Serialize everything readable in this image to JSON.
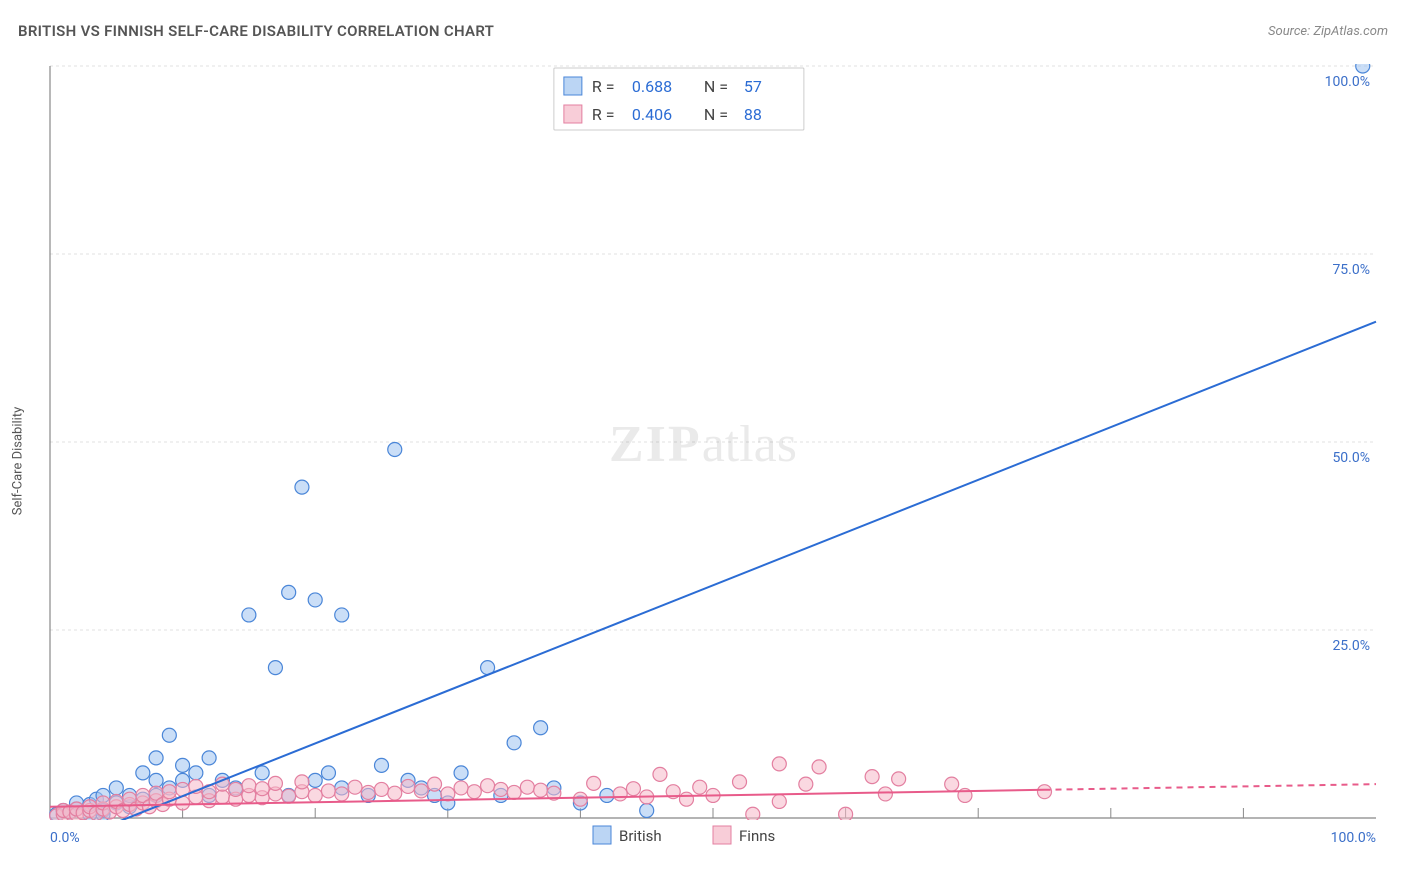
{
  "title": "BRITISH VS FINNISH SELF-CARE DISABILITY CORRELATION CHART",
  "source_prefix": "Source: ",
  "source_link": "ZipAtlas.com",
  "ylabel": "Self-Care Disability",
  "watermark_zip": "ZIP",
  "watermark_atlas": "atlas",
  "chart": {
    "type": "scatter",
    "xlim": [
      0,
      100
    ],
    "ylim": [
      0,
      100
    ],
    "x_ticks_major": [
      0,
      100
    ],
    "x_ticks_minor": [
      10,
      20,
      30,
      40,
      50,
      60,
      70,
      80,
      90
    ],
    "y_ticks": [
      25,
      50,
      75,
      100
    ],
    "x_tick_labels": {
      "0": "0.0%",
      "100": "100.0%"
    },
    "y_tick_labels": {
      "25": "25.0%",
      "50": "50.0%",
      "75": "75.0%",
      "100": "100.0%"
    },
    "grid_color": "#e0e0e0",
    "axis_color": "#888888",
    "background": "#ffffff",
    "marker_radius": 7,
    "marker_stroke_width": 1.2,
    "series": [
      {
        "name": "British",
        "fill": "#9ec3f0",
        "stroke": "#4a86d8",
        "fill_opacity": 0.55,
        "R": "0.688",
        "N": "57",
        "trend": {
          "x1": 3,
          "y1": -2,
          "x2": 100,
          "y2": 66,
          "color": "#2b6cd4",
          "width": 2,
          "dash_from_x": null
        },
        "points": [
          [
            0.5,
            0.5
          ],
          [
            1,
            1
          ],
          [
            1.5,
            0.8
          ],
          [
            2,
            1.2
          ],
          [
            2,
            2
          ],
          [
            3,
            0.5
          ],
          [
            3,
            1.8
          ],
          [
            3.5,
            2.5
          ],
          [
            4,
            1
          ],
          [
            4,
            3
          ],
          [
            5,
            2
          ],
          [
            5,
            4
          ],
          [
            6,
            1.5
          ],
          [
            6,
            3
          ],
          [
            7,
            2.5
          ],
          [
            7,
            6
          ],
          [
            8,
            3
          ],
          [
            8,
            5
          ],
          [
            8,
            8
          ],
          [
            9,
            4
          ],
          [
            9,
            11
          ],
          [
            10,
            5
          ],
          [
            10,
            7
          ],
          [
            11,
            6
          ],
          [
            12,
            3
          ],
          [
            12,
            8
          ],
          [
            13,
            5
          ],
          [
            14,
            4
          ],
          [
            15,
            27
          ],
          [
            16,
            6
          ],
          [
            17,
            20
          ],
          [
            18,
            3
          ],
          [
            18,
            30
          ],
          [
            19,
            44
          ],
          [
            20,
            5
          ],
          [
            20,
            29
          ],
          [
            21,
            6
          ],
          [
            22,
            27
          ],
          [
            22,
            4
          ],
          [
            24,
            3
          ],
          [
            25,
            7
          ],
          [
            26,
            49
          ],
          [
            27,
            5
          ],
          [
            28,
            4
          ],
          [
            29,
            3
          ],
          [
            30,
            2
          ],
          [
            31,
            6
          ],
          [
            33,
            20
          ],
          [
            34,
            3
          ],
          [
            35,
            10
          ],
          [
            37,
            12
          ],
          [
            38,
            4
          ],
          [
            40,
            2
          ],
          [
            42,
            3
          ],
          [
            45,
            1
          ],
          [
            99,
            100
          ],
          [
            4,
            0.5
          ]
        ]
      },
      {
        "name": "Finns",
        "fill": "#f5b8c8",
        "stroke": "#e37fa0",
        "fill_opacity": 0.55,
        "R": "0.406",
        "N": "88",
        "trend": {
          "x1": 0,
          "y1": 1.5,
          "x2": 100,
          "y2": 4.5,
          "color": "#e85b8a",
          "width": 2,
          "dash_from_x": 75
        },
        "points": [
          [
            0.5,
            0.3
          ],
          [
            1,
            0.5
          ],
          [
            1,
            1
          ],
          [
            1.5,
            0.8
          ],
          [
            2,
            0.5
          ],
          [
            2,
            1.2
          ],
          [
            2.5,
            0.7
          ],
          [
            3,
            1
          ],
          [
            3,
            1.5
          ],
          [
            3.5,
            0.6
          ],
          [
            4,
            1.2
          ],
          [
            4,
            2
          ],
          [
            4.5,
            0.8
          ],
          [
            5,
            1.5
          ],
          [
            5,
            2.2
          ],
          [
            5.5,
            1
          ],
          [
            6,
            1.8
          ],
          [
            6,
            2.5
          ],
          [
            6.5,
            1.2
          ],
          [
            7,
            2
          ],
          [
            7,
            3
          ],
          [
            7.5,
            1.5
          ],
          [
            8,
            2.3
          ],
          [
            8,
            3.3
          ],
          [
            8.5,
            1.8
          ],
          [
            9,
            2.5
          ],
          [
            9,
            3.5
          ],
          [
            10,
            2
          ],
          [
            10,
            3.8
          ],
          [
            11,
            2.8
          ],
          [
            11,
            4.2
          ],
          [
            12,
            2.3
          ],
          [
            12,
            3.5
          ],
          [
            13,
            2.8
          ],
          [
            13,
            4.5
          ],
          [
            14,
            2.5
          ],
          [
            14,
            3.8
          ],
          [
            15,
            3
          ],
          [
            15,
            4.3
          ],
          [
            16,
            2.7
          ],
          [
            16,
            3.9
          ],
          [
            17,
            3.2
          ],
          [
            17,
            4.6
          ],
          [
            18,
            2.9
          ],
          [
            19,
            3.5
          ],
          [
            19,
            4.8
          ],
          [
            20,
            3
          ],
          [
            21,
            3.6
          ],
          [
            22,
            3.2
          ],
          [
            23,
            4.1
          ],
          [
            24,
            3.4
          ],
          [
            25,
            3.8
          ],
          [
            26,
            3.3
          ],
          [
            27,
            4.2
          ],
          [
            28,
            3.6
          ],
          [
            29,
            4.5
          ],
          [
            30,
            3.2
          ],
          [
            31,
            4
          ],
          [
            32,
            3.5
          ],
          [
            33,
            4.3
          ],
          [
            34,
            3.8
          ],
          [
            35,
            3.4
          ],
          [
            36,
            4.1
          ],
          [
            37,
            3.7
          ],
          [
            38,
            3.3
          ],
          [
            40,
            2.5
          ],
          [
            41,
            4.6
          ],
          [
            43,
            3.2
          ],
          [
            44,
            3.9
          ],
          [
            45,
            2.8
          ],
          [
            46,
            5.8
          ],
          [
            47,
            3.5
          ],
          [
            48,
            2.5
          ],
          [
            49,
            4.1
          ],
          [
            50,
            3
          ],
          [
            52,
            4.8
          ],
          [
            53,
            0.5
          ],
          [
            55,
            2.2
          ],
          [
            55,
            7.2
          ],
          [
            57,
            4.5
          ],
          [
            58,
            6.8
          ],
          [
            60,
            0.5
          ],
          [
            62,
            5.5
          ],
          [
            63,
            3.2
          ],
          [
            64,
            5.2
          ],
          [
            68,
            4.5
          ],
          [
            69,
            3
          ],
          [
            75,
            3.5
          ]
        ]
      }
    ],
    "legend_top": {
      "R_label": "R =",
      "N_label": "N ="
    },
    "legend_bottom": {
      "items": [
        "British",
        "Finns"
      ]
    }
  },
  "colors": {
    "title": "#555555",
    "source": "#888888",
    "tick_label": "#3b6fc9",
    "legend_val": "#2b6cd4"
  }
}
